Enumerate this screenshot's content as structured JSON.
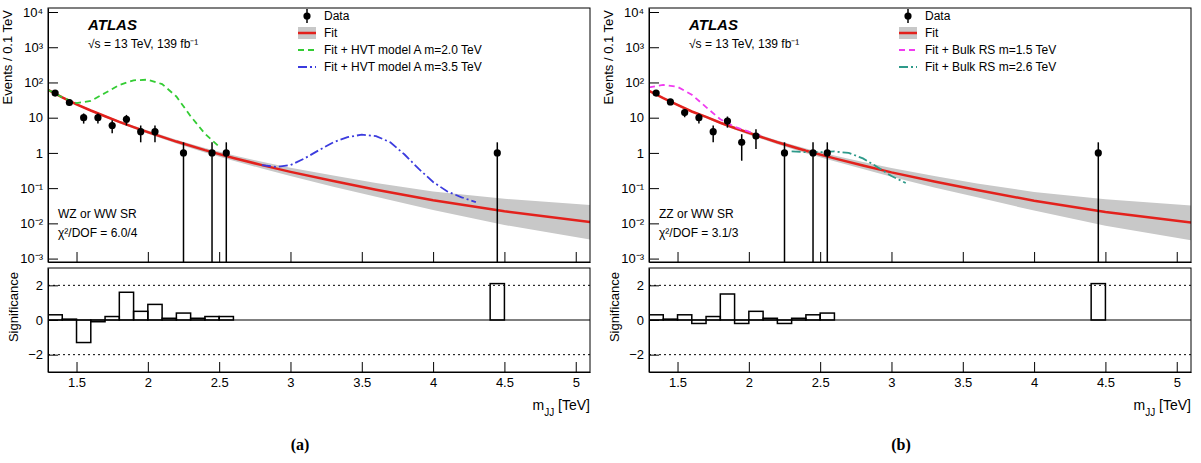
{
  "chart_data": [
    {
      "type": "scatter",
      "caption": "(a)",
      "y_label": "Events / 0.1 TeV",
      "log": "y",
      "legend": "upper right",
      "tick_labels": "y",
      "annotations": [
        "ATLAS",
        "√s = 13 TeV, 139 fb⁻¹",
        "WZ or WW SR",
        "χ²/DOF = 6.0/4"
      ],
      "xlim": [
        1.3,
        5.1
      ],
      "xticks": [
        1.5,
        2,
        2.5,
        3,
        3.5,
        4,
        4.5,
        5
      ],
      "ylim": [
        0.0008,
        13000
      ],
      "yticks": [
        {
          "value": 0.001,
          "label": "10⁻³"
        },
        {
          "value": 0.01,
          "label": "10⁻²"
        },
        {
          "value": 0.1,
          "label": "10⁻¹"
        },
        1,
        10,
        {
          "value": 100,
          "label": "10²"
        },
        {
          "value": 1000,
          "label": "10³"
        },
        {
          "value": 10000,
          "label": "10⁴"
        }
      ],
      "series": [
        {
          "name": "Data",
          "type": "scatter",
          "marker": "circle",
          "color": "#000000",
          "x": [
            1.35,
            1.45,
            1.55,
            1.65,
            1.75,
            1.85,
            1.95,
            2.05,
            2.25,
            2.45,
            2.55,
            4.45
          ],
          "values": [
            50,
            27,
            10,
            10,
            6,
            9,
            4,
            4,
            1,
            1,
            1,
            1
          ],
          "errors": [
            7.1,
            5.2,
            3.2,
            3.2,
            2.4,
            3,
            2,
            2,
            1,
            1,
            1,
            1
          ]
        },
        {
          "name": "Fit",
          "type": "line",
          "line_style": "solid",
          "color": "#e3211c",
          "x": [
            1.3,
            1.4,
            1.5,
            1.6,
            1.7,
            1.8,
            1.9,
            2.0,
            2.2,
            2.4,
            2.6,
            2.8,
            3.0,
            3.3,
            3.6,
            4.0,
            4.5,
            5.1
          ],
          "values": [
            62,
            38,
            24,
            16,
            11,
            7.6,
            5.4,
            3.9,
            2.1,
            1.2,
            0.72,
            0.45,
            0.29,
            0.16,
            0.09,
            0.045,
            0.022,
            0.011
          ],
          "band_low": [
            58,
            36,
            22.5,
            15,
            10.2,
            7,
            4.9,
            3.5,
            1.85,
            1.02,
            0.6,
            0.36,
            0.22,
            0.11,
            0.057,
            0.024,
            0.009,
            0.0035
          ],
          "band_high": [
            66,
            40,
            25.5,
            17,
            11.8,
            8.2,
            5.9,
            4.3,
            2.35,
            1.38,
            0.86,
            0.56,
            0.38,
            0.23,
            0.14,
            0.08,
            0.05,
            0.033
          ]
        },
        {
          "name": "Fit + HVT model A m=2.0 TeV",
          "type": "line",
          "line_style": "dashed",
          "color": "#33cc33",
          "x": [
            1.3,
            1.4,
            1.5,
            1.6,
            1.7,
            1.8,
            1.9,
            2.0,
            2.1,
            2.2,
            2.3,
            2.4,
            2.5
          ],
          "values": [
            62,
            38,
            26,
            30,
            50,
            85,
            115,
            120,
            90,
            40,
            11,
            3.5,
            1.5
          ]
        },
        {
          "name": "Fit + HVT model A m=3.5 TeV",
          "type": "line",
          "line_style": "dashdot",
          "color": "#3b3bde",
          "x": [
            2.8,
            2.9,
            3.0,
            3.1,
            3.2,
            3.3,
            3.4,
            3.5,
            3.6,
            3.7,
            3.8,
            3.9,
            4.0,
            4.1,
            4.2,
            4.3
          ],
          "values": [
            0.45,
            0.4,
            0.45,
            0.7,
            1.2,
            2.0,
            2.8,
            3.3,
            3.0,
            2.0,
            0.9,
            0.35,
            0.15,
            0.08,
            0.055,
            0.04
          ]
        }
      ]
    },
    {
      "type": "histogram",
      "x_label": "mJJ [TeV]",
      "y_label": "Significance",
      "grid": true,
      "xlim": [
        1.3,
        5.1
      ],
      "xticks": [
        1.5,
        2,
        2.5,
        3,
        3.5,
        4,
        4.5,
        5
      ],
      "ylim": [
        -3,
        3
      ],
      "yticks": [
        {
          "value": -2,
          "label": "−2"
        },
        0,
        2
      ],
      "bins": [
        1.3,
        1.4,
        1.5,
        1.6,
        1.7,
        1.8,
        1.9,
        2.0,
        2.1,
        2.2,
        2.3,
        2.4,
        2.5,
        2.6,
        2.7,
        2.8,
        2.9,
        3.0,
        3.1,
        3.2,
        3.3,
        3.4,
        3.5,
        3.6,
        3.7,
        3.8,
        3.9,
        4.0,
        4.1,
        4.2,
        4.3,
        4.4,
        4.5,
        4.6,
        4.7,
        4.8,
        4.9,
        5.0,
        5.1
      ],
      "values": [
        0.3,
        0.05,
        -1.3,
        -0.1,
        0.2,
        1.6,
        0.5,
        0.9,
        0.1,
        0.4,
        0.1,
        0.2,
        0.2,
        0,
        0,
        0,
        0,
        0,
        0,
        0,
        0,
        0,
        0,
        0,
        0,
        0,
        0,
        0,
        0,
        0,
        0,
        2.1,
        0,
        0,
        0,
        0,
        0,
        0
      ]
    },
    {
      "type": "scatter",
      "caption": "(b)",
      "y_label": "Events / 0.1 TeV",
      "log": "y",
      "legend": "upper right",
      "tick_labels": "y",
      "annotations": [
        "ATLAS",
        "√s = 13 TeV, 139 fb⁻¹",
        "ZZ or WW SR",
        "χ²/DOF = 3.1/3"
      ],
      "xlim": [
        1.3,
        5.1
      ],
      "xticks": [
        1.5,
        2,
        2.5,
        3,
        3.5,
        4,
        4.5,
        5
      ],
      "ylim": [
        0.0008,
        13000
      ],
      "yticks": [
        {
          "value": 0.001,
          "label": "10⁻³"
        },
        {
          "value": 0.01,
          "label": "10⁻²"
        },
        {
          "value": 0.1,
          "label": "10⁻¹"
        },
        1,
        10,
        {
          "value": 100,
          "label": "10²"
        },
        {
          "value": 1000,
          "label": "10³"
        },
        {
          "value": 10000,
          "label": "10⁴"
        }
      ],
      "series": [
        {
          "name": "Data",
          "type": "scatter",
          "marker": "circle",
          "color": "#000000",
          "x": [
            1.35,
            1.45,
            1.55,
            1.65,
            1.75,
            1.85,
            1.95,
            2.05,
            2.25,
            2.45,
            2.55,
            4.45
          ],
          "values": [
            50,
            28,
            14,
            10,
            4,
            8,
            2,
            3,
            1,
            1,
            1,
            1
          ],
          "errors": [
            7.1,
            5.3,
            3.7,
            3.2,
            2,
            2.8,
            1.4,
            1.7,
            1,
            1,
            1,
            1
          ]
        },
        {
          "name": "Fit",
          "type": "line",
          "line_style": "solid",
          "color": "#e3211c",
          "x": [
            1.3,
            1.4,
            1.5,
            1.6,
            1.7,
            1.8,
            1.9,
            2.0,
            2.2,
            2.4,
            2.6,
            2.8,
            3.0,
            3.3,
            3.6,
            4.0,
            4.5,
            5.1
          ],
          "values": [
            58,
            36,
            23,
            15,
            10.5,
            7.2,
            5.1,
            3.7,
            2.0,
            1.15,
            0.7,
            0.44,
            0.28,
            0.155,
            0.088,
            0.044,
            0.021,
            0.0105
          ],
          "band_low": [
            55,
            34,
            21.6,
            14,
            9.7,
            6.6,
            4.6,
            3.3,
            1.76,
            0.98,
            0.58,
            0.35,
            0.21,
            0.105,
            0.055,
            0.023,
            0.0085,
            0.0033
          ],
          "band_high": [
            61,
            38,
            24.4,
            16,
            11.3,
            7.8,
            5.6,
            4.1,
            2.25,
            1.33,
            0.84,
            0.55,
            0.37,
            0.22,
            0.135,
            0.078,
            0.048,
            0.032
          ]
        },
        {
          "name": "Fit + Bulk RS m=1.5 TeV",
          "type": "line",
          "line_style": "dashed",
          "color": "#f03cf0",
          "x": [
            1.3,
            1.4,
            1.5,
            1.6,
            1.7,
            1.8,
            1.9,
            2.0,
            2.1
          ],
          "values": [
            72,
            85,
            75,
            45,
            20,
            9,
            5.5,
            4,
            3
          ]
        },
        {
          "name": "Fit + Bulk RS m=2.6 TeV",
          "type": "line",
          "line_style": "dashdot",
          "color": "#2e9a8a",
          "x": [
            2.3,
            2.4,
            2.5,
            2.6,
            2.7,
            2.8,
            2.9,
            3.0,
            3.1
          ],
          "values": [
            1.1,
            1.05,
            1.05,
            1.1,
            1.0,
            0.7,
            0.4,
            0.22,
            0.14
          ]
        }
      ]
    },
    {
      "type": "histogram",
      "x_label": "mJJ [TeV]",
      "y_label": "Significance",
      "grid": true,
      "xlim": [
        1.3,
        5.1
      ],
      "xticks": [
        1.5,
        2,
        2.5,
        3,
        3.5,
        4,
        4.5,
        5
      ],
      "ylim": [
        -3,
        3
      ],
      "yticks": [
        {
          "value": -2,
          "label": "−2"
        },
        0,
        2
      ],
      "bins": [
        1.3,
        1.4,
        1.5,
        1.6,
        1.7,
        1.8,
        1.9,
        2.0,
        2.1,
        2.2,
        2.3,
        2.4,
        2.5,
        2.6,
        2.7,
        2.8,
        2.9,
        3.0,
        3.1,
        3.2,
        3.3,
        3.4,
        3.5,
        3.6,
        3.7,
        3.8,
        3.9,
        4.0,
        4.1,
        4.2,
        4.3,
        4.4,
        4.5,
        4.6,
        4.7,
        4.8,
        4.9,
        5.0,
        5.1
      ],
      "values": [
        0.3,
        0.05,
        0.3,
        -0.2,
        0.2,
        1.5,
        -0.2,
        0.5,
        0.1,
        -0.2,
        0.1,
        0.3,
        0.4,
        0,
        0,
        0,
        0,
        0,
        0,
        0,
        0,
        0,
        0,
        0,
        0,
        0,
        0,
        0,
        0,
        0,
        0,
        2.1,
        0,
        0,
        0,
        0,
        0,
        0
      ]
    }
  ]
}
